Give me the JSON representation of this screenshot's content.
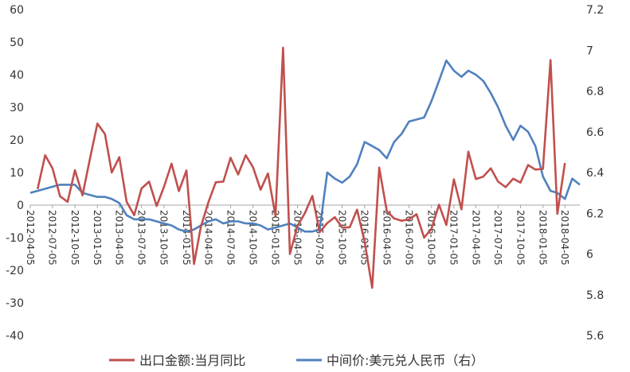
{
  "chart_data": {
    "type": "line",
    "title": "",
    "xlabel": "",
    "x_ticks": [
      "2012-04-05",
      "2012-07-05",
      "2012-10-05",
      "2013-01-05",
      "2013-04-05",
      "2013-07-05",
      "2013-10-05",
      "2014-01-05",
      "2014-04-05",
      "2014-07-05",
      "2014-10-05",
      "2015-01-05",
      "2015-04-05",
      "2015-07-05",
      "2015-10-05",
      "2016-01-05",
      "2016-04-05",
      "2016-07-05",
      "2016-10-05",
      "2017-01-05",
      "2017-04-05",
      "2017-07-05",
      "2017-10-05",
      "2018-01-05",
      "2018-04-05"
    ],
    "x_range": [
      "2012-04-05",
      "2018-06-05"
    ],
    "left_axis": {
      "range": [
        -40,
        60
      ],
      "ticks": [
        "-40",
        "-30",
        "-20",
        "-10",
        "0",
        "10",
        "20",
        "30",
        "40",
        "50",
        "60"
      ]
    },
    "right_axis": {
      "range": [
        5.6,
        7.2
      ],
      "ticks": [
        "5.6",
        "5.8",
        "6",
        "6.2",
        "6.4",
        "6.6",
        "6.8",
        "7",
        "7.2"
      ]
    },
    "grid": false,
    "legend_position": "bottom",
    "series": [
      {
        "name": "出口金额:当月同比",
        "axis": "left",
        "color": "#C0504D",
        "points": [
          [
            "2012-05-05",
            4.9
          ],
          [
            "2012-06-05",
            15.3
          ],
          [
            "2012-07-05",
            11.3
          ],
          [
            "2012-08-05",
            2.7
          ],
          [
            "2012-09-05",
            1.0
          ],
          [
            "2012-10-05",
            10.7
          ],
          [
            "2012-11-05",
            3.0
          ],
          [
            "2012-12-05",
            14.1
          ],
          [
            "2013-01-05",
            25.0
          ],
          [
            "2013-02-05",
            21.8
          ],
          [
            "2013-03-05",
            10.0
          ],
          [
            "2013-04-05",
            14.7
          ],
          [
            "2013-05-05",
            1.0
          ],
          [
            "2013-06-05",
            -3.1
          ],
          [
            "2013-07-05",
            5.1
          ],
          [
            "2013-08-05",
            7.2
          ],
          [
            "2013-09-05",
            -0.3
          ],
          [
            "2013-10-05",
            5.6
          ],
          [
            "2013-11-05",
            12.7
          ],
          [
            "2013-12-05",
            4.3
          ],
          [
            "2014-01-05",
            10.6
          ],
          [
            "2014-02-05",
            -18.1
          ],
          [
            "2014-03-05",
            -6.6
          ],
          [
            "2014-04-05",
            0.9
          ],
          [
            "2014-05-05",
            7.0
          ],
          [
            "2014-06-05",
            7.2
          ],
          [
            "2014-07-05",
            14.5
          ],
          [
            "2014-08-05",
            9.4
          ],
          [
            "2014-09-05",
            15.3
          ],
          [
            "2014-10-05",
            11.6
          ],
          [
            "2014-11-05",
            4.7
          ],
          [
            "2014-12-05",
            9.7
          ],
          [
            "2015-01-05",
            -3.3
          ],
          [
            "2015-02-05",
            48.3
          ],
          [
            "2015-03-05",
            -15.0
          ],
          [
            "2015-04-05",
            -6.4
          ],
          [
            "2015-05-05",
            -2.5
          ],
          [
            "2015-06-05",
            2.8
          ],
          [
            "2015-07-05",
            -8.3
          ],
          [
            "2015-08-05",
            -5.5
          ],
          [
            "2015-09-05",
            -3.7
          ],
          [
            "2015-10-05",
            -6.9
          ],
          [
            "2015-11-05",
            -6.8
          ],
          [
            "2015-12-05",
            -1.4
          ],
          [
            "2016-01-05",
            -11.2
          ],
          [
            "2016-02-05",
            -25.4
          ],
          [
            "2016-03-05",
            11.5
          ],
          [
            "2016-04-05",
            -1.8
          ],
          [
            "2016-05-05",
            -4.1
          ],
          [
            "2016-06-05",
            -4.8
          ],
          [
            "2016-07-05",
            -4.4
          ],
          [
            "2016-08-05",
            -2.8
          ],
          [
            "2016-09-05",
            -10.0
          ],
          [
            "2016-10-05",
            -7.3
          ],
          [
            "2016-11-05",
            0.1
          ],
          [
            "2016-12-05",
            -6.1
          ],
          [
            "2017-01-05",
            7.9
          ],
          [
            "2017-02-05",
            -1.3
          ],
          [
            "2017-03-05",
            16.4
          ],
          [
            "2017-04-05",
            8.0
          ],
          [
            "2017-05-05",
            8.7
          ],
          [
            "2017-06-05",
            11.3
          ],
          [
            "2017-07-05",
            7.2
          ],
          [
            "2017-08-05",
            5.5
          ],
          [
            "2017-09-05",
            8.1
          ],
          [
            "2017-10-05",
            6.9
          ],
          [
            "2017-11-05",
            12.3
          ],
          [
            "2017-12-05",
            10.9
          ],
          [
            "2018-01-05",
            11.1
          ],
          [
            "2018-02-05",
            44.5
          ],
          [
            "2018-03-05",
            -2.7
          ],
          [
            "2018-04-05",
            12.9
          ]
        ]
      },
      {
        "name": "中间价:美元兑人民币（右）",
        "axis": "right",
        "color": "#4F81BD",
        "points": [
          [
            "2012-04-05",
            6.3
          ],
          [
            "2012-05-05",
            6.31
          ],
          [
            "2012-06-05",
            6.32
          ],
          [
            "2012-07-05",
            6.33
          ],
          [
            "2012-08-05",
            6.34
          ],
          [
            "2012-09-05",
            6.34
          ],
          [
            "2012-10-05",
            6.34
          ],
          [
            "2012-11-05",
            6.3
          ],
          [
            "2012-12-05",
            6.29
          ],
          [
            "2013-01-05",
            6.28
          ],
          [
            "2013-02-05",
            6.28
          ],
          [
            "2013-03-05",
            6.27
          ],
          [
            "2013-04-05",
            6.25
          ],
          [
            "2013-05-05",
            6.19
          ],
          [
            "2013-06-05",
            6.17
          ],
          [
            "2013-07-05",
            6.17
          ],
          [
            "2013-08-05",
            6.17
          ],
          [
            "2013-09-05",
            6.16
          ],
          [
            "2013-10-05",
            6.15
          ],
          [
            "2013-11-05",
            6.14
          ],
          [
            "2013-12-05",
            6.12
          ],
          [
            "2014-01-05",
            6.11
          ],
          [
            "2014-02-05",
            6.12
          ],
          [
            "2014-03-05",
            6.14
          ],
          [
            "2014-04-05",
            6.16
          ],
          [
            "2014-05-05",
            6.17
          ],
          [
            "2014-06-05",
            6.15
          ],
          [
            "2014-07-05",
            6.16
          ],
          [
            "2014-08-05",
            6.16
          ],
          [
            "2014-09-05",
            6.15
          ],
          [
            "2014-10-05",
            6.15
          ],
          [
            "2014-11-05",
            6.14
          ],
          [
            "2014-12-05",
            6.12
          ],
          [
            "2015-01-05",
            6.13
          ],
          [
            "2015-02-05",
            6.14
          ],
          [
            "2015-03-05",
            6.15
          ],
          [
            "2015-04-05",
            6.13
          ],
          [
            "2015-05-05",
            6.11
          ],
          [
            "2015-06-05",
            6.11
          ],
          [
            "2015-07-05",
            6.12
          ],
          [
            "2015-08-05",
            6.4
          ],
          [
            "2015-09-05",
            6.37
          ],
          [
            "2015-10-05",
            6.35
          ],
          [
            "2015-11-05",
            6.38
          ],
          [
            "2015-12-05",
            6.44
          ],
          [
            "2016-01-05",
            6.55
          ],
          [
            "2016-02-05",
            6.53
          ],
          [
            "2016-03-05",
            6.51
          ],
          [
            "2016-04-05",
            6.47
          ],
          [
            "2016-05-05",
            6.55
          ],
          [
            "2016-06-05",
            6.59
          ],
          [
            "2016-07-05",
            6.65
          ],
          [
            "2016-08-05",
            6.66
          ],
          [
            "2016-09-05",
            6.67
          ],
          [
            "2016-10-05",
            6.75
          ],
          [
            "2016-11-05",
            6.85
          ],
          [
            "2016-12-05",
            6.95
          ],
          [
            "2017-01-05",
            6.9
          ],
          [
            "2017-02-05",
            6.87
          ],
          [
            "2017-03-05",
            6.9
          ],
          [
            "2017-04-05",
            6.88
          ],
          [
            "2017-05-05",
            6.85
          ],
          [
            "2017-06-05",
            6.79
          ],
          [
            "2017-07-05",
            6.72
          ],
          [
            "2017-08-05",
            6.63
          ],
          [
            "2017-09-05",
            6.56
          ],
          [
            "2017-10-05",
            6.63
          ],
          [
            "2017-11-05",
            6.6
          ],
          [
            "2017-12-05",
            6.53
          ],
          [
            "2018-01-05",
            6.38
          ],
          [
            "2018-02-05",
            6.31
          ],
          [
            "2018-03-05",
            6.3
          ],
          [
            "2018-04-05",
            6.27
          ],
          [
            "2018-05-05",
            6.37
          ],
          [
            "2018-06-05",
            6.34
          ]
        ]
      }
    ]
  }
}
